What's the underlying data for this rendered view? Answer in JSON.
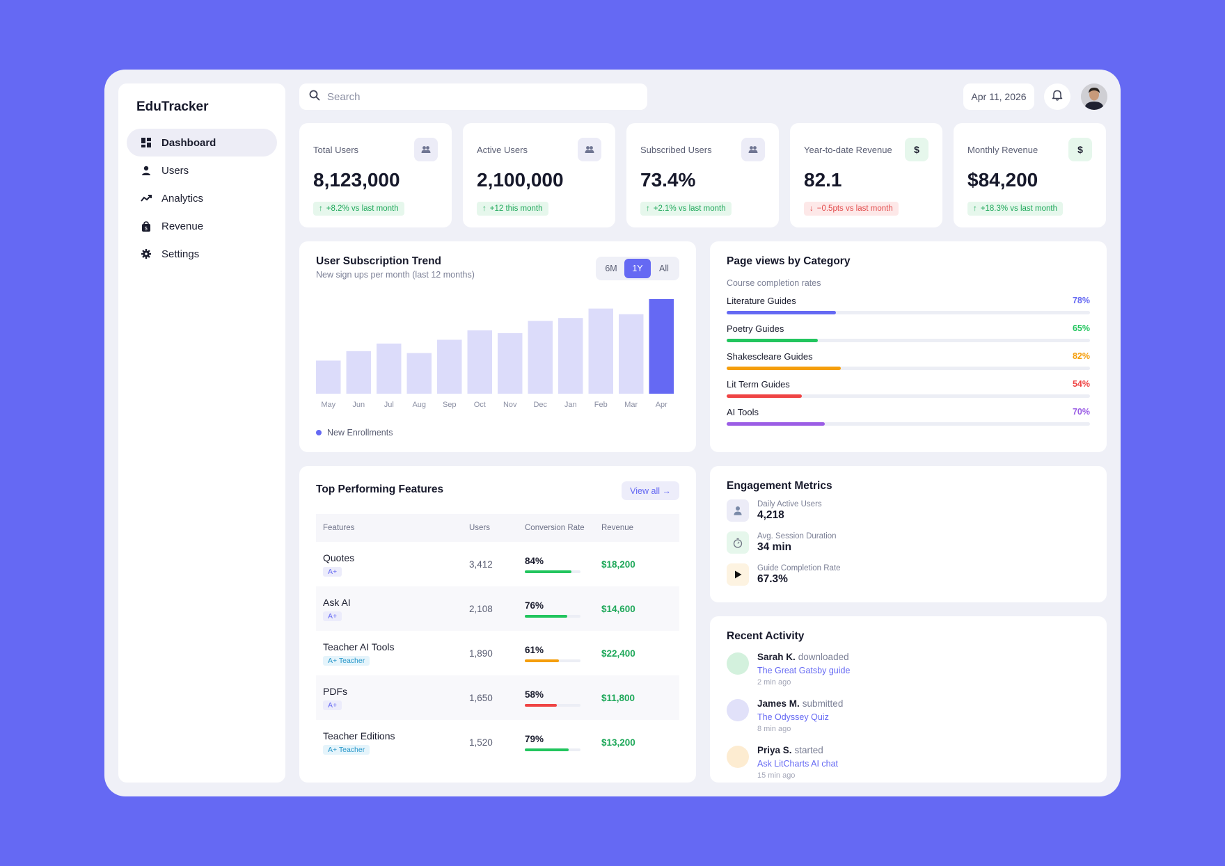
{
  "brand": "EduTracker",
  "nav": [
    {
      "label": "Dashboard",
      "icon": "dashboard-icon"
    },
    {
      "label": "Users",
      "icon": "user-icon"
    },
    {
      "label": "Analytics",
      "icon": "analytics-icon"
    },
    {
      "label": "Revenue",
      "icon": "revenue-icon"
    },
    {
      "label": "Settings",
      "icon": "gear-icon"
    }
  ],
  "search": {
    "placeholder": "Search"
  },
  "date": "Apr 11, 2026",
  "kpis": [
    {
      "label": "Total Users",
      "value": "8,123,000",
      "delta": "+8.2% vs last month",
      "trend": "up",
      "icon": "users-icon"
    },
    {
      "label": "Active Users",
      "value": "2,100,000",
      "delta": "+12 this month",
      "trend": "up",
      "icon": "users-icon"
    },
    {
      "label": "Subscribed Users",
      "value": "73.4%",
      "delta": "+2.1% vs last month",
      "trend": "up",
      "icon": "users-icon"
    },
    {
      "label": "Year-to-date Revenue",
      "value": "82.1",
      "delta": "−0.5pts vs last month",
      "trend": "down",
      "icon": "dollar-icon"
    },
    {
      "label": "Monthly Revenue",
      "value": "$84,200",
      "delta": "+18.3% vs last month",
      "trend": "up",
      "icon": "dollar-icon"
    }
  ],
  "trend": {
    "title": "User Subscription Trend",
    "subtitle": "New sign ups per month (last 12 months)",
    "ranges": [
      "6M",
      "1Y",
      "All"
    ],
    "active_range": "1Y",
    "legend": "New Enrollments"
  },
  "chart_data": {
    "type": "bar",
    "title": "User Subscription Trend",
    "subtitle": "New sign ups per month (last 12 months)",
    "categories": [
      "May",
      "Jun",
      "Jul",
      "Aug",
      "Sep",
      "Oct",
      "Nov",
      "Dec",
      "Jan",
      "Feb",
      "Mar",
      "Apr"
    ],
    "series": [
      {
        "name": "New Enrollments",
        "values": [
          35,
          45,
          53,
          43,
          57,
          67,
          64,
          77,
          80,
          90,
          84,
          100
        ]
      }
    ],
    "highlight_index": 11,
    "ylim": [
      0,
      100
    ],
    "grid": false,
    "legend": "bottom-left",
    "colors": {
      "bar": "#dcdcfa",
      "highlight": "#6569f3"
    }
  },
  "pageviews": {
    "title": "Page views by Category",
    "subtitle": "Course completion rates",
    "items": [
      {
        "label": "Literature Guides",
        "pct_text": "78%",
        "fill": 0.3,
        "color": "#6569f3"
      },
      {
        "label": "Poetry Guides",
        "pct_text": "65%",
        "fill": 0.25,
        "color": "#22c55e"
      },
      {
        "label": "Shakescleare Guides",
        "pct_text": "82%",
        "fill": 0.315,
        "color": "#f59e0b"
      },
      {
        "label": "Lit Term Guides",
        "pct_text": "54%",
        "fill": 0.207,
        "color": "#ef4444"
      },
      {
        "label": "AI Tools",
        "pct_text": "70%",
        "fill": 0.27,
        "color": "#9b5de5"
      }
    ]
  },
  "features": {
    "title": "Top Performing Features",
    "view_all": "View all →",
    "columns": [
      "Features",
      "Users",
      "Conversion Rate",
      "Revenue"
    ],
    "rows": [
      {
        "name": "Quotes",
        "badge": "A+",
        "badge_type": "a",
        "users": "3,412",
        "conv": "84%",
        "conv_value": 0.84,
        "conv_color": "#22c55e",
        "revenue": "$18,200"
      },
      {
        "name": "Ask AI",
        "badge": "A+",
        "badge_type": "a",
        "users": "2,108",
        "conv": "76%",
        "conv_value": 0.76,
        "conv_color": "#22c55e",
        "revenue": "$14,600"
      },
      {
        "name": "Teacher AI Tools",
        "badge": "A+ Teacher",
        "badge_type": "t",
        "users": "1,890",
        "conv": "61%",
        "conv_value": 0.61,
        "conv_color": "#f59e0b",
        "revenue": "$22,400"
      },
      {
        "name": "PDFs",
        "badge": "A+",
        "badge_type": "a",
        "users": "1,650",
        "conv": "58%",
        "conv_value": 0.58,
        "conv_color": "#ef4444",
        "revenue": "$11,800"
      },
      {
        "name": "Teacher Editions",
        "badge": "A+ Teacher",
        "badge_type": "t",
        "users": "1,520",
        "conv": "79%",
        "conv_value": 0.79,
        "conv_color": "#22c55e",
        "revenue": "$13,200"
      }
    ]
  },
  "engagement": {
    "title": "Engagement Metrics",
    "items": [
      {
        "label": "Daily Active Users",
        "value": "4,218",
        "icon": "person-icon",
        "bg": "#ececf7"
      },
      {
        "label": "Avg. Session Duration",
        "value": "34 min",
        "icon": "stopwatch-icon",
        "bg": "#e6f7ec"
      },
      {
        "label": "Guide Completion Rate",
        "value": "67.3%",
        "icon": "play-icon",
        "bg": "#fdf3e1"
      }
    ]
  },
  "activity": {
    "title": "Recent Activity",
    "items": [
      {
        "name": "Sarah K.",
        "verb": "downloaded",
        "link": "The Great Gatsby guide",
        "time": "2 min ago",
        "color": "#d3f1dd"
      },
      {
        "name": "James M.",
        "verb": "submitted",
        "link": "The Odyssey Quiz",
        "time": "8 min ago",
        "color": "#e1e1f9"
      },
      {
        "name": "Priya S.",
        "verb": "started",
        "link": "Ask LitCharts AI chat",
        "time": "15 min ago",
        "color": "#fdecd1"
      }
    ]
  }
}
